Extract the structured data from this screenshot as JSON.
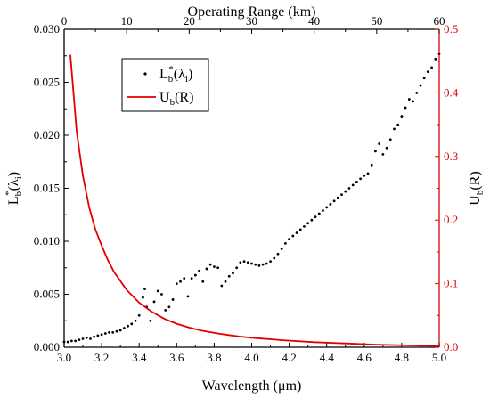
{
  "chart_data": {
    "type": "scatter+line",
    "x_bottom": {
      "label": "Wavelength (μm)",
      "range": [
        3.0,
        5.0
      ],
      "ticks": [
        "3.0",
        "3.2",
        "3.4",
        "3.6",
        "3.8",
        "4.0",
        "4.2",
        "4.4",
        "4.6",
        "4.8",
        "5.0"
      ]
    },
    "x_top": {
      "label": "Operating Range (km)",
      "range": [
        0,
        60
      ],
      "ticks": [
        "0",
        "10",
        "20",
        "30",
        "40",
        "50",
        "60"
      ]
    },
    "y_left": {
      "label_main": "L",
      "label_sup": "*",
      "label_sub": "b",
      "label_paren": "(λ",
      "label_paren_sub": "i",
      "label_close": ")",
      "range": [
        0,
        0.03
      ],
      "ticks": [
        "0.000",
        "0.005",
        "0.010",
        "0.015",
        "0.020",
        "0.025",
        "0.030"
      ]
    },
    "y_right": {
      "label_main": "U",
      "label_sub": "b",
      "label_paren": "(R)",
      "range": [
        0,
        0.5
      ],
      "ticks": [
        "0.0",
        "0.1",
        "0.2",
        "0.3",
        "0.4",
        "0.5"
      ],
      "color": "#e00000"
    },
    "series": [
      {
        "name": "Lb*(λi)",
        "axis": "bottom-left",
        "marker": "dot",
        "color": "#000000",
        "points": [
          [
            3.0,
            0.0005
          ],
          [
            3.02,
            0.0005
          ],
          [
            3.04,
            0.0006
          ],
          [
            3.06,
            0.0006
          ],
          [
            3.08,
            0.0007
          ],
          [
            3.1,
            0.0008
          ],
          [
            3.12,
            0.0009
          ],
          [
            3.14,
            0.0008
          ],
          [
            3.16,
            0.001
          ],
          [
            3.18,
            0.0011
          ],
          [
            3.2,
            0.0012
          ],
          [
            3.22,
            0.0013
          ],
          [
            3.24,
            0.0014
          ],
          [
            3.26,
            0.0014
          ],
          [
            3.28,
            0.0015
          ],
          [
            3.3,
            0.0016
          ],
          [
            3.32,
            0.0018
          ],
          [
            3.34,
            0.002
          ],
          [
            3.36,
            0.0022
          ],
          [
            3.38,
            0.0025
          ],
          [
            3.4,
            0.003
          ],
          [
            3.42,
            0.0047
          ],
          [
            3.43,
            0.0055
          ],
          [
            3.44,
            0.0038
          ],
          [
            3.46,
            0.0025
          ],
          [
            3.48,
            0.0043
          ],
          [
            3.5,
            0.0053
          ],
          [
            3.52,
            0.005
          ],
          [
            3.54,
            0.0035
          ],
          [
            3.56,
            0.0038
          ],
          [
            3.58,
            0.0045
          ],
          [
            3.6,
            0.006
          ],
          [
            3.62,
            0.0062
          ],
          [
            3.64,
            0.0065
          ],
          [
            3.66,
            0.0048
          ],
          [
            3.68,
            0.0065
          ],
          [
            3.7,
            0.0068
          ],
          [
            3.72,
            0.0072
          ],
          [
            3.74,
            0.0062
          ],
          [
            3.76,
            0.0074
          ],
          [
            3.78,
            0.0078
          ],
          [
            3.8,
            0.0076
          ],
          [
            3.82,
            0.0075
          ],
          [
            3.84,
            0.0058
          ],
          [
            3.86,
            0.0062
          ],
          [
            3.88,
            0.0067
          ],
          [
            3.9,
            0.007
          ],
          [
            3.92,
            0.0075
          ],
          [
            3.94,
            0.008
          ],
          [
            3.96,
            0.0081
          ],
          [
            3.98,
            0.008
          ],
          [
            4.0,
            0.0079
          ],
          [
            4.02,
            0.0078
          ],
          [
            4.04,
            0.0077
          ],
          [
            4.06,
            0.0078
          ],
          [
            4.08,
            0.0079
          ],
          [
            4.1,
            0.0081
          ],
          [
            4.12,
            0.0084
          ],
          [
            4.14,
            0.0088
          ],
          [
            4.16,
            0.0093
          ],
          [
            4.18,
            0.0098
          ],
          [
            4.2,
            0.0102
          ],
          [
            4.22,
            0.0105
          ],
          [
            4.24,
            0.0108
          ],
          [
            4.26,
            0.0111
          ],
          [
            4.28,
            0.0114
          ],
          [
            4.3,
            0.0117
          ],
          [
            4.32,
            0.012
          ],
          [
            4.34,
            0.0123
          ],
          [
            4.36,
            0.0126
          ],
          [
            4.38,
            0.0129
          ],
          [
            4.4,
            0.0132
          ],
          [
            4.42,
            0.0135
          ],
          [
            4.44,
            0.0138
          ],
          [
            4.46,
            0.0141
          ],
          [
            4.48,
            0.0144
          ],
          [
            4.5,
            0.0147
          ],
          [
            4.52,
            0.015
          ],
          [
            4.54,
            0.0153
          ],
          [
            4.56,
            0.0156
          ],
          [
            4.58,
            0.0159
          ],
          [
            4.6,
            0.0162
          ],
          [
            4.62,
            0.0164
          ],
          [
            4.64,
            0.0172
          ],
          [
            4.66,
            0.0185
          ],
          [
            4.68,
            0.0192
          ],
          [
            4.7,
            0.0182
          ],
          [
            4.72,
            0.0188
          ],
          [
            4.74,
            0.0196
          ],
          [
            4.76,
            0.0206
          ],
          [
            4.78,
            0.021
          ],
          [
            4.8,
            0.0218
          ],
          [
            4.82,
            0.0226
          ],
          [
            4.84,
            0.0234
          ],
          [
            4.86,
            0.0232
          ],
          [
            4.88,
            0.024
          ],
          [
            4.9,
            0.0247
          ],
          [
            4.92,
            0.0254
          ],
          [
            4.94,
            0.026
          ],
          [
            4.96,
            0.0264
          ],
          [
            4.98,
            0.0272
          ],
          [
            5.0,
            0.0277
          ]
        ]
      },
      {
        "name": "Ub(R)",
        "axis": "top-right",
        "marker": "line",
        "color": "#e00000",
        "points": [
          [
            1,
            0.46
          ],
          [
            1.5,
            0.4
          ],
          [
            2,
            0.34
          ],
          [
            3,
            0.27
          ],
          [
            4,
            0.22
          ],
          [
            5,
            0.185
          ],
          [
            6,
            0.16
          ],
          [
            7,
            0.137
          ],
          [
            8,
            0.118
          ],
          [
            10,
            0.09
          ],
          [
            12,
            0.07
          ],
          [
            14,
            0.056
          ],
          [
            16,
            0.045
          ],
          [
            18,
            0.037
          ],
          [
            20,
            0.031
          ],
          [
            22,
            0.026
          ],
          [
            25,
            0.021
          ],
          [
            28,
            0.017
          ],
          [
            30,
            0.015
          ],
          [
            35,
            0.011
          ],
          [
            40,
            0.008
          ],
          [
            45,
            0.006
          ],
          [
            50,
            0.004
          ],
          [
            55,
            0.003
          ],
          [
            60,
            0.002
          ]
        ]
      }
    ],
    "legend_position": "top-left",
    "grid": false
  }
}
